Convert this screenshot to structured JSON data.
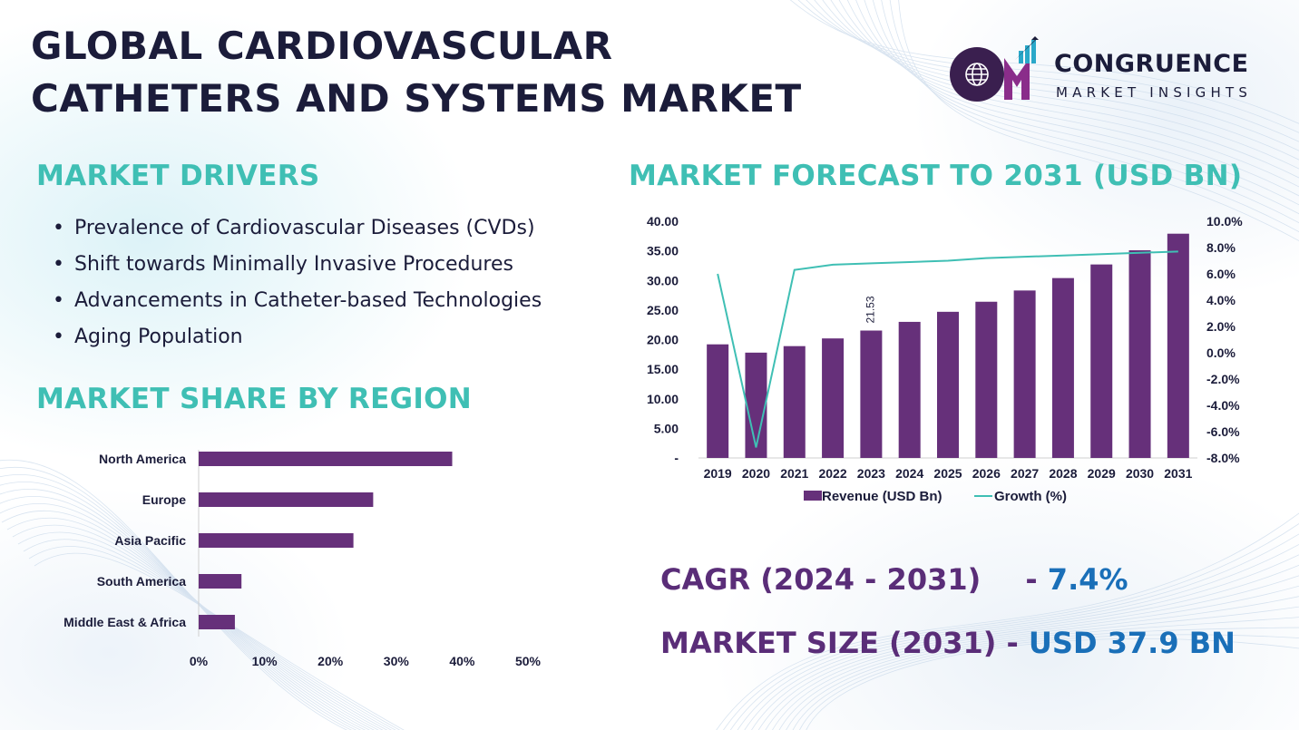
{
  "title": {
    "line1": "GLOBAL CARDIOVASCULAR",
    "line2": "CATHETERS AND SYSTEMS MARKET"
  },
  "logo": {
    "monogram": "CM",
    "name": "CONGRUENCE",
    "tagline": "MARKET INSIGHTS",
    "icon": "globe-bar-chart-icon"
  },
  "drivers": {
    "heading": "MARKET DRIVERS",
    "items": [
      "Prevalence of Cardiovascular Diseases (CVDs)",
      "Shift towards Minimally Invasive Procedures",
      "Advancements in Catheter-based Technologies",
      "Aging Population"
    ]
  },
  "region": {
    "heading": "MARKET SHARE BY REGION"
  },
  "forecast": {
    "heading": "MARKET FORECAST TO 2031 (USD BN)"
  },
  "stats": {
    "cagr_label": "CAGR (2024 - 2031)",
    "cagr_sep": "-",
    "cagr_value": "7.4%",
    "size_label": "MARKET SIZE (2031)",
    "size_sep": "-",
    "size_value": "USD 37.9 BN"
  },
  "colors": {
    "title": "#1b1c3a",
    "heading_teal": "#3fbfb4",
    "bar_purple": "#66307a",
    "line_teal": "#3fbfb4",
    "stat_purple": "#5a2d78",
    "stat_blue": "#1a6fb8"
  },
  "chart_data": [
    {
      "type": "bar",
      "orientation": "horizontal",
      "categories": [
        "North America",
        "Europe",
        "Asia Pacific",
        "South America",
        "Middle East & Africa"
      ],
      "values": [
        38.5,
        26.5,
        23.5,
        6.5,
        5.5
      ],
      "unit": "%",
      "xlim": [
        0,
        50
      ],
      "xticks": [
        "0%",
        "10%",
        "20%",
        "30%",
        "40%",
        "50%"
      ],
      "grid": false,
      "color": "#66307a"
    },
    {
      "type": "bar+line",
      "categories": [
        "2019",
        "2020",
        "2021",
        "2022",
        "2023",
        "2024",
        "2025",
        "2026",
        "2027",
        "2028",
        "2029",
        "2030",
        "2031"
      ],
      "series": [
        {
          "name": "Revenue (USD Bn)",
          "type": "bar",
          "axis": "left",
          "values": [
            19.2,
            17.8,
            18.9,
            20.2,
            21.53,
            23.0,
            24.7,
            26.4,
            28.3,
            30.4,
            32.7,
            35.1,
            37.9
          ],
          "color": "#66307a"
        },
        {
          "name": "Growth (%)",
          "type": "line",
          "axis": "right",
          "values": [
            6.0,
            -7.2,
            6.3,
            6.7,
            6.8,
            6.9,
            7.0,
            7.2,
            7.3,
            7.4,
            7.5,
            7.6,
            7.7
          ],
          "color": "#3fbfb4"
        }
      ],
      "annotations": [
        {
          "category": "2023",
          "text": "21.53"
        }
      ],
      "y_left": {
        "range": [
          0,
          40
        ],
        "ticks": [
          "-",
          "5.00",
          "10.00",
          "15.00",
          "20.00",
          "25.00",
          "30.00",
          "35.00",
          "40.00"
        ]
      },
      "y_right": {
        "range": [
          -8,
          10
        ],
        "ticks": [
          "-8.0%",
          "-6.0%",
          "-4.0%",
          "-2.0%",
          "0.0%",
          "2.0%",
          "4.0%",
          "6.0%",
          "8.0%",
          "10.0%"
        ]
      },
      "legend": {
        "position": "bottom"
      },
      "grid": false
    }
  ]
}
